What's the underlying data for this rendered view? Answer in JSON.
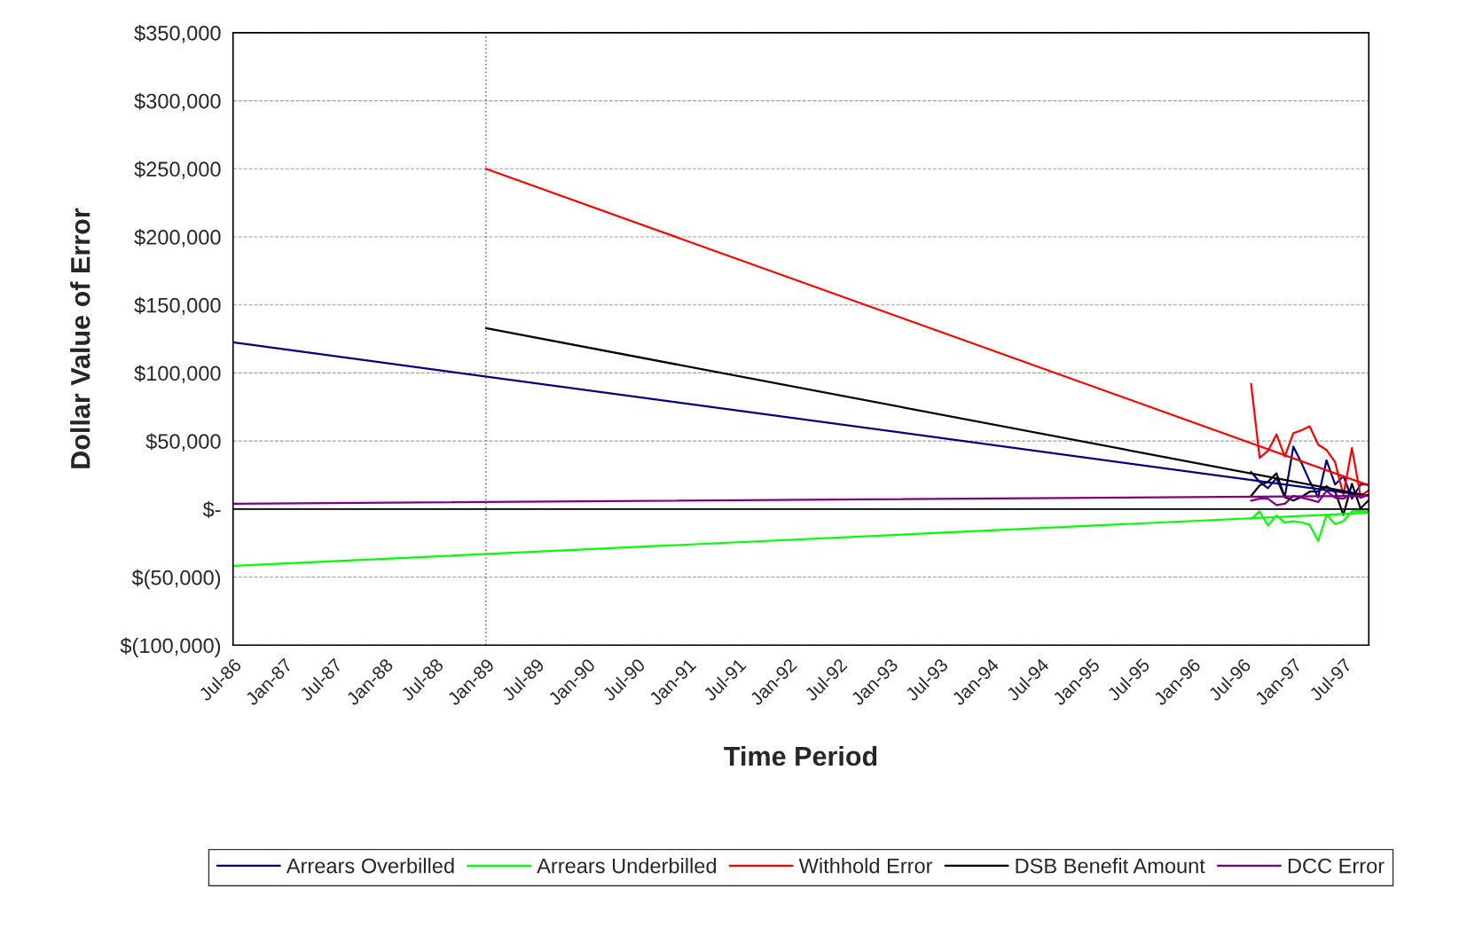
{
  "chart_data": {
    "type": "line",
    "xlabel": "Time Period",
    "ylabel": "Dollar Value of Error",
    "x": [
      "1996-08",
      "1996-09",
      "1996-10",
      "1996-11",
      "1996-12",
      "1997-01",
      "1997-02",
      "1997-03",
      "1997-04",
      "1997-05",
      "1997-06",
      "1997-07",
      "1997-08",
      "1997-09",
      "1997-10"
    ],
    "series": [
      {
        "name": "Arrears Overbilled",
        "color": "#000080",
        "values": [
          27300,
          20000,
          15300,
          22700,
          8700,
          45900,
          33200,
          20500,
          8700,
          35900,
          18000,
          24200,
          7600,
          18000,
          18000
        ]
      },
      {
        "name": "Arrears Underbilled",
        "color": "#00ff00",
        "values": [
          -7300,
          -1700,
          -12000,
          -4800,
          -9900,
          -8900,
          -9900,
          -11600,
          -23400,
          -4200,
          -11000,
          -8900,
          -1700,
          -1300,
          -1700
        ]
      },
      {
        "name": "Withhold Error",
        "color": "#ff0000",
        "values": [
          92000,
          37600,
          42800,
          54800,
          38600,
          55800,
          58000,
          60800,
          47300,
          43400,
          34500,
          10300,
          44800,
          9700,
          13800
        ]
      },
      {
        "name": "DSB Benefit Amount",
        "color": "#000000",
        "values": [
          9700,
          17300,
          20000,
          26200,
          8700,
          6200,
          9100,
          12800,
          13000,
          16700,
          12800,
          -4300,
          18600,
          400,
          6600
        ]
      },
      {
        "name": "DCC Error",
        "color": "#800080",
        "values": [
          6200,
          7600,
          7600,
          2900,
          3900,
          9700,
          8300,
          7000,
          5100,
          13400,
          8300,
          7600,
          11200,
          8300,
          10500
        ]
      },
      {
        "type": "line",
        "color": "#000080",
        "x": [
          "1986-07",
          "1997-10"
        ],
        "values": [
          122500,
          9700
        ]
      },
      {
        "type": "line",
        "color": "#00ff00",
        "x": [
          "1986-07",
          "1997-10"
        ],
        "values": [
          -41700,
          -2700
        ]
      },
      {
        "type": "line",
        "color": "#ff0000",
        "x": [
          "1989-01",
          "1997-10"
        ],
        "values": [
          250000,
          17400
        ]
      },
      {
        "type": "line",
        "color": "#000000",
        "x": [
          "1989-01",
          "1997-10"
        ],
        "values": [
          132900,
          9700
        ]
      },
      {
        "type": "line",
        "color": "#800080",
        "x": [
          "1986-07",
          "1997-10"
        ],
        "values": [
          3900,
          9700
        ]
      }
    ],
    "ref_lines": [
      {
        "axis": "x",
        "value": "1989-01",
        "color": "#808080",
        "line_style": "dotted"
      }
    ],
    "xlim": [
      "1986-07",
      "1997-10"
    ],
    "xticks": [
      {
        "value": "1986-07",
        "label": "Jul-86"
      },
      {
        "value": "1987-01",
        "label": "Jan-87"
      },
      {
        "value": "1987-07",
        "label": "Jul-87"
      },
      {
        "value": "1988-01",
        "label": "Jan-88"
      },
      {
        "value": "1988-07",
        "label": "Jul-88"
      },
      {
        "value": "1989-01",
        "label": "Jan-89"
      },
      {
        "value": "1989-07",
        "label": "Jul-89"
      },
      {
        "value": "1990-01",
        "label": "Jan-90"
      },
      {
        "value": "1990-07",
        "label": "Jul-90"
      },
      {
        "value": "1991-01",
        "label": "Jan-91"
      },
      {
        "value": "1991-07",
        "label": "Jul-91"
      },
      {
        "value": "1992-01",
        "label": "Jan-92"
      },
      {
        "value": "1992-07",
        "label": "Jul-92"
      },
      {
        "value": "1993-01",
        "label": "Jan-93"
      },
      {
        "value": "1993-07",
        "label": "Jul-93"
      },
      {
        "value": "1994-01",
        "label": "Jan-94"
      },
      {
        "value": "1994-07",
        "label": "Jul-94"
      },
      {
        "value": "1995-01",
        "label": "Jan-95"
      },
      {
        "value": "1995-07",
        "label": "Jul-95"
      },
      {
        "value": "1996-01",
        "label": "Jan-96"
      },
      {
        "value": "1996-07",
        "label": "Jul-96"
      },
      {
        "value": "1997-01",
        "label": "Jan-97"
      },
      {
        "value": "1997-07",
        "label": "Jul-97"
      }
    ],
    "ylim": [
      -100000,
      350000
    ],
    "yticks": [
      {
        "value": -100000,
        "label": "$(100,000)"
      },
      {
        "value": -50000,
        "label": "$(50,000)"
      },
      {
        "value": 0,
        "label": "$-"
      },
      {
        "value": 50000,
        "label": "$50,000"
      },
      {
        "value": 100000,
        "label": "$100,000"
      },
      {
        "value": 150000,
        "label": "$150,000"
      },
      {
        "value": 200000,
        "label": "$200,000"
      },
      {
        "value": 250000,
        "label": "$250,000"
      },
      {
        "value": 300000,
        "label": "$300,000"
      },
      {
        "value": 350000,
        "label": "$350,000"
      }
    ],
    "grid": "y",
    "legend": "bottom",
    "line_style": "solid",
    "marker": "none"
  }
}
